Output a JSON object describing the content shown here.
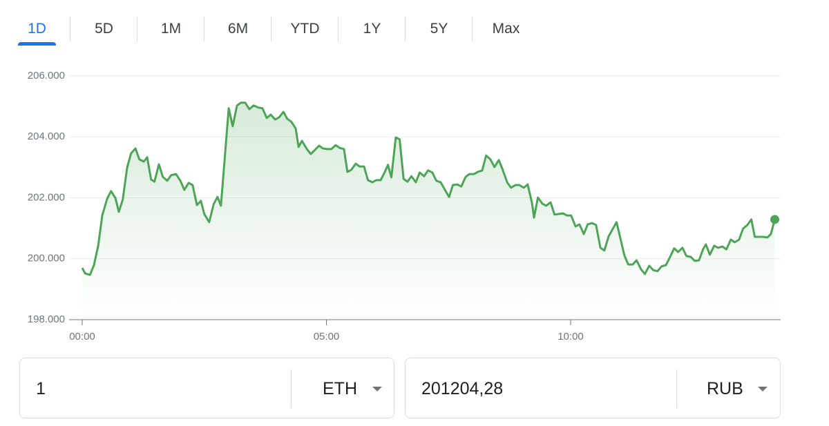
{
  "tabs": [
    "1D",
    "5D",
    "1M",
    "6M",
    "YTD",
    "1Y",
    "5Y",
    "Max"
  ],
  "chart_data": {
    "type": "line",
    "color": "#4ca456",
    "x": [
      0,
      0.06,
      0.16,
      0.24,
      0.33,
      0.41,
      0.51,
      0.59,
      0.68,
      0.75,
      0.83,
      0.92,
      1.0,
      1.09,
      1.17,
      1.26,
      1.33,
      1.41,
      1.48,
      1.57,
      1.65,
      1.74,
      1.82,
      1.92,
      2.01,
      2.09,
      2.18,
      2.26,
      2.35,
      2.43,
      2.5,
      2.6,
      2.69,
      2.77,
      2.84,
      3.0,
      3.08,
      3.17,
      3.25,
      3.34,
      3.42,
      3.51,
      3.61,
      3.69,
      3.78,
      3.86,
      3.95,
      4.03,
      4.12,
      4.2,
      4.28,
      4.37,
      4.43,
      4.5,
      4.6,
      4.68,
      4.77,
      4.85,
      4.93,
      5.02,
      5.1,
      5.19,
      5.27,
      5.36,
      5.43,
      5.51,
      5.6,
      5.68,
      5.77,
      5.85,
      5.94,
      6.02,
      6.11,
      6.19,
      6.26,
      6.33,
      6.42,
      6.5,
      6.58,
      6.66,
      6.74,
      6.83,
      6.91,
      7.0,
      7.08,
      7.17,
      7.25,
      7.34,
      7.42,
      7.51,
      7.59,
      7.68,
      7.76,
      7.85,
      7.93,
      8.02,
      8.1,
      8.19,
      8.27,
      8.36,
      8.44,
      8.53,
      8.61,
      8.7,
      8.78,
      8.87,
      8.95,
      9.04,
      9.12,
      9.21,
      9.25,
      9.33,
      9.42,
      9.5,
      9.59,
      9.67,
      9.76,
      9.84,
      9.93,
      10.01,
      10.1,
      10.18,
      10.27,
      10.35,
      10.44,
      10.52,
      10.61,
      10.69,
      10.78,
      10.86,
      10.94,
      11.1,
      11.18,
      11.27,
      11.35,
      11.44,
      11.52,
      11.61,
      11.69,
      11.78,
      11.86,
      11.95,
      12.03,
      12.12,
      12.2,
      12.29,
      12.37,
      12.46,
      12.54,
      12.63,
      12.71,
      12.77,
      12.85,
      12.94,
      13.02,
      13.11,
      13.19,
      13.28,
      13.36,
      13.45,
      13.53,
      13.62,
      13.7,
      13.77,
      13.86,
      13.94,
      14.03,
      14.1,
      14.18
    ],
    "values": [
      199700,
      199520,
      199470,
      199790,
      200450,
      201420,
      201970,
      202220,
      201990,
      201540,
      201940,
      202990,
      203460,
      203620,
      203260,
      203190,
      203330,
      202600,
      202530,
      203100,
      202690,
      202560,
      202740,
      202780,
      202560,
      202260,
      202490,
      202420,
      201760,
      201900,
      201470,
      201200,
      201790,
      202030,
      201740,
      204940,
      204350,
      205030,
      205120,
      205120,
      204910,
      205030,
      204960,
      204940,
      204620,
      204730,
      204570,
      204640,
      204820,
      204590,
      204500,
      204280,
      203670,
      203870,
      203600,
      203440,
      203580,
      203710,
      203620,
      203600,
      203600,
      203730,
      203640,
      203600,
      202850,
      202920,
      203120,
      203030,
      203030,
      202580,
      202510,
      202580,
      202580,
      202830,
      203080,
      202670,
      203980,
      203920,
      202620,
      202530,
      202710,
      202510,
      202830,
      202710,
      202900,
      202830,
      202560,
      202510,
      202280,
      202030,
      202420,
      202440,
      202370,
      202690,
      202780,
      202780,
      202850,
      202900,
      203390,
      203260,
      203010,
      203240,
      202920,
      202510,
      202330,
      202420,
      202420,
      202330,
      202440,
      201830,
      201350,
      202010,
      201810,
      201740,
      201850,
      201450,
      201470,
      201490,
      201420,
      201420,
      201060,
      201130,
      200810,
      201130,
      201170,
      201110,
      200360,
      200270,
      200740,
      200970,
      201200,
      200110,
      199810,
      199810,
      199950,
      199660,
      199500,
      199770,
      199630,
      199590,
      199750,
      199790,
      200040,
      200340,
      200220,
      200360,
      200090,
      200060,
      199930,
      199950,
      200310,
      200470,
      200130,
      200430,
      200360,
      200400,
      200310,
      200630,
      200540,
      200630,
      200990,
      201110,
      201290,
      200720,
      200720,
      200720,
      200700,
      200810,
      201290
    ],
    "xlim": [
      0,
      14.3
    ],
    "xticks": [
      {
        "value": 0,
        "label": "00:00"
      },
      {
        "value": 5,
        "label": "05:00"
      },
      {
        "value": 10,
        "label": "10:00"
      }
    ],
    "ylim": [
      198000,
      206000
    ],
    "yticks": [
      {
        "value": 198000,
        "label": "198.000"
      },
      {
        "value": 200000,
        "label": "200.000"
      },
      {
        "value": 202000,
        "label": "202.000"
      },
      {
        "value": 204000,
        "label": "204.000"
      },
      {
        "value": 206000,
        "label": "206.000"
      }
    ],
    "grid": true
  },
  "converter": {
    "from": {
      "amount": "1",
      "currency": "ETH"
    },
    "to": {
      "amount": "201204,28",
      "currency": "RUB"
    }
  }
}
